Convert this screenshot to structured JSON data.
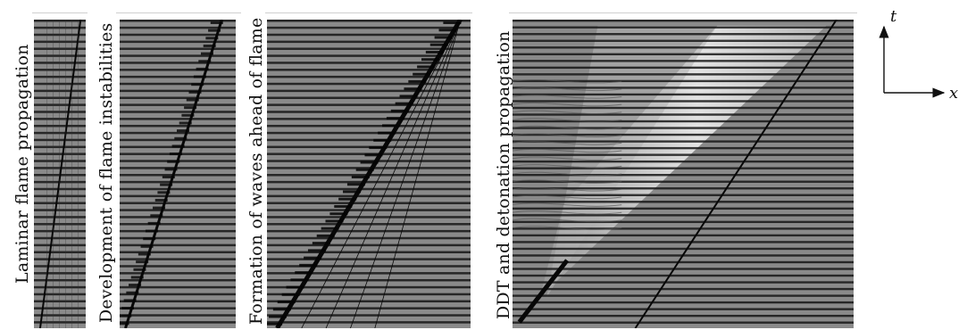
{
  "panels": [
    {
      "id": "laminar",
      "label": "Laminar flame propagation"
    },
    {
      "id": "instab",
      "label": "Development of flame instabilities"
    },
    {
      "id": "waves",
      "label": "Formation of waves ahead of flame"
    },
    {
      "id": "ddt",
      "label": "DDT and detonation propagation"
    }
  ],
  "axes": {
    "t_label": "t",
    "x_label": "x"
  },
  "colors": {
    "background": "#8c8c8c",
    "stripe": "#111111",
    "flame": "#0a0a0a",
    "bright": "#f2f2f2"
  }
}
